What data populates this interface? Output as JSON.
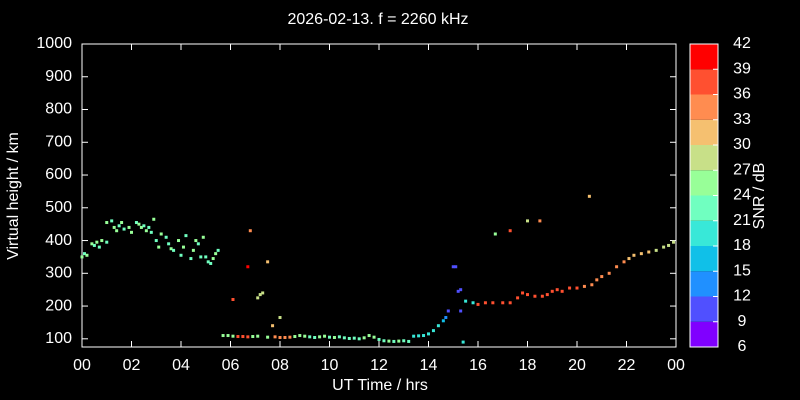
{
  "chart_data": {
    "type": "scatter",
    "title": "2026-02-13. f = 2260 kHz",
    "xlabel": "UT Time / hrs",
    "ylabel": "Virtual height / km",
    "xlim": [
      0,
      24
    ],
    "xticks": [
      {
        "value": 0,
        "label": "00"
      },
      {
        "value": 2,
        "label": "02"
      },
      {
        "value": 4,
        "label": "04"
      },
      {
        "value": 6,
        "label": "06"
      },
      {
        "value": 8,
        "label": "08"
      },
      10,
      12,
      14,
      16,
      18,
      20,
      22,
      {
        "value": 24,
        "label": "00"
      }
    ],
    "ylim": [
      75,
      1000
    ],
    "yticks": [
      100,
      200,
      300,
      400,
      500,
      600,
      700,
      800,
      900,
      1000
    ],
    "x": [
      0.0,
      0.1,
      0.2,
      0.4,
      0.5,
      0.6,
      0.7,
      0.8,
      1.0,
      1.0,
      1.2,
      1.3,
      1.4,
      1.5,
      1.6,
      1.7,
      1.9,
      2.0,
      2.2,
      2.3,
      2.4,
      2.5,
      2.6,
      2.7,
      2.9,
      2.8,
      3.0,
      3.1,
      3.2,
      3.4,
      3.5,
      3.6,
      3.7,
      3.9,
      4.0,
      4.1,
      4.2,
      4.4,
      4.5,
      4.6,
      4.7,
      4.8,
      4.9,
      5.0,
      5.1,
      5.2,
      5.3,
      5.4,
      5.5,
      6.1,
      6.7,
      6.8,
      7.1,
      7.2,
      7.3,
      7.5,
      7.7,
      8.0,
      5.7,
      5.9,
      6.1,
      6.3,
      6.5,
      6.7,
      6.9,
      7.1,
      7.5,
      7.8,
      8.0,
      8.2,
      8.4,
      8.6,
      8.8,
      9.0,
      9.2,
      9.4,
      9.6,
      9.8,
      10.0,
      10.2,
      10.4,
      10.6,
      10.8,
      11.0,
      11.2,
      11.4,
      11.6,
      11.8,
      12.0,
      12.2,
      12.4,
      12.6,
      12.8,
      13.0,
      13.2,
      13.4,
      13.6,
      13.8,
      14.0,
      14.2,
      14.4,
      14.6,
      14.7,
      14.8,
      15.0,
      15.1,
      15.2,
      15.3,
      15.3,
      15.4,
      15.5,
      15.8,
      16.0,
      16.3,
      16.6,
      17.0,
      17.3,
      17.6,
      17.8,
      18.0,
      18.3,
      18.6,
      18.8,
      19.0,
      19.2,
      19.4,
      19.7,
      20.0,
      20.3,
      20.6,
      20.8,
      21.0,
      21.3,
      21.6,
      21.9,
      22.1,
      22.3,
      22.6,
      22.9,
      23.2,
      23.5,
      23.7,
      23.9,
      16.7,
      17.3,
      18.0,
      18.5,
      20.5
    ],
    "values": [
      350,
      360,
      355,
      390,
      385,
      395,
      380,
      400,
      395,
      455,
      460,
      440,
      430,
      445,
      455,
      435,
      440,
      425,
      455,
      450,
      440,
      445,
      430,
      440,
      465,
      425,
      400,
      380,
      420,
      410,
      390,
      375,
      370,
      400,
      355,
      380,
      415,
      345,
      370,
      400,
      390,
      350,
      410,
      350,
      335,
      330,
      345,
      360,
      370,
      220,
      320,
      430,
      225,
      235,
      240,
      335,
      140,
      165,
      110,
      110,
      108,
      107,
      107,
      106,
      107,
      108,
      105,
      106,
      104,
      104,
      105,
      107,
      110,
      108,
      106,
      104,
      106,
      108,
      105,
      104,
      106,
      103,
      101,
      102,
      100,
      103,
      110,
      105,
      98,
      94,
      93,
      92,
      93,
      94,
      92,
      108,
      109,
      110,
      115,
      125,
      140,
      155,
      165,
      185,
      320,
      320,
      245,
      250,
      185,
      90,
      215,
      210,
      205,
      210,
      210,
      210,
      210,
      225,
      240,
      235,
      230,
      230,
      235,
      245,
      250,
      245,
      255,
      255,
      260,
      265,
      280,
      290,
      300,
      320,
      335,
      345,
      355,
      360,
      365,
      370,
      380,
      385,
      395,
      420,
      430,
      460,
      460,
      535
    ],
    "snr": [
      25,
      22,
      25,
      25,
      22,
      25,
      22,
      25,
      22,
      25,
      22,
      25,
      25,
      22,
      25,
      22,
      25,
      25,
      22,
      25,
      25,
      22,
      25,
      22,
      25,
      22,
      22,
      25,
      25,
      22,
      22,
      25,
      22,
      25,
      22,
      25,
      22,
      22,
      25,
      25,
      22,
      22,
      25,
      22,
      22,
      22,
      25,
      25,
      22,
      36,
      40,
      35,
      28,
      28,
      28,
      30,
      30,
      27,
      25,
      25,
      25,
      37,
      37,
      37,
      25,
      25,
      25,
      33,
      33,
      33,
      33,
      25,
      25,
      25,
      23,
      23,
      25,
      25,
      23,
      25,
      23,
      22,
      22,
      22,
      22,
      25,
      25,
      25,
      22,
      23,
      25,
      23,
      25,
      22,
      23,
      20,
      20,
      20,
      20,
      19,
      18,
      15,
      12,
      11,
      10,
      10,
      10,
      10,
      10,
      18,
      20,
      20,
      37,
      37,
      37,
      37,
      37,
      37,
      38,
      37,
      37,
      37,
      37,
      37,
      37,
      37,
      37,
      37,
      35,
      35,
      35,
      35,
      35,
      35,
      35,
      31,
      31,
      31,
      31,
      28,
      28,
      28,
      27,
      25,
      38,
      29,
      33,
      30
    ],
    "colorbar": {
      "label": "SNR / dB",
      "lim": [
        6,
        42
      ],
      "ticks": [
        6,
        9,
        12,
        15,
        18,
        21,
        24,
        27,
        30,
        33,
        36,
        39,
        42
      ],
      "colors": [
        "#8000ff",
        "#5050ff",
        "#2090ff",
        "#10c0e8",
        "#38e8d8",
        "#70ffc0",
        "#98ff98",
        "#c8e088",
        "#f5c070",
        "#ff8c50",
        "#ff5030",
        "#ff0000"
      ]
    }
  }
}
